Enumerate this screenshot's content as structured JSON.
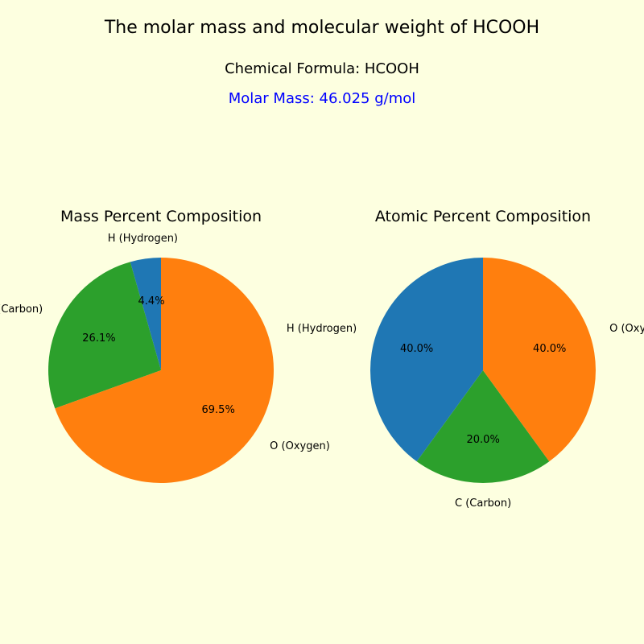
{
  "background_color": "#fdffe0",
  "title": "The molar mass and molecular weight of HCOOH",
  "title_fontsize": 22,
  "formula_line": "Chemical Formula: HCOOH",
  "molar_mass_line": "Molar Mass: 46.025 g/mol",
  "molar_mass_color": "#0000ff",
  "subtitle_fontsize": 18,
  "label_fontsize": 13,
  "chart_title_fontsize": 19,
  "pie_radius": 140,
  "slice_colors": {
    "H": "#1f77b4",
    "C": "#2ca02c",
    "O": "#ff7f0e"
  },
  "mass_chart": {
    "title": "Mass Percent Composition",
    "start_angle": 90,
    "direction": "ccw",
    "slices": [
      {
        "key": "H",
        "label": "H (Hydrogen)",
        "value": 4.4,
        "pct_display": "4.4%"
      },
      {
        "key": "C",
        "label": "C (Carbon)",
        "value": 26.1,
        "pct_display": "26.1%"
      },
      {
        "key": "O",
        "label": "O (Oxygen)",
        "value": 69.5,
        "pct_display": "69.5%"
      }
    ]
  },
  "atomic_chart": {
    "title": "Atomic Percent Composition",
    "start_angle": 90,
    "direction": "ccw",
    "slices": [
      {
        "key": "H",
        "label": "H (Hydrogen)",
        "value": 40.0,
        "pct_display": "40.0%"
      },
      {
        "key": "C",
        "label": "C (Carbon)",
        "value": 20.0,
        "pct_display": "20.0%"
      },
      {
        "key": "O",
        "label": "O (Oxygen)",
        "value": 40.0,
        "pct_display": "40.0%"
      }
    ]
  }
}
